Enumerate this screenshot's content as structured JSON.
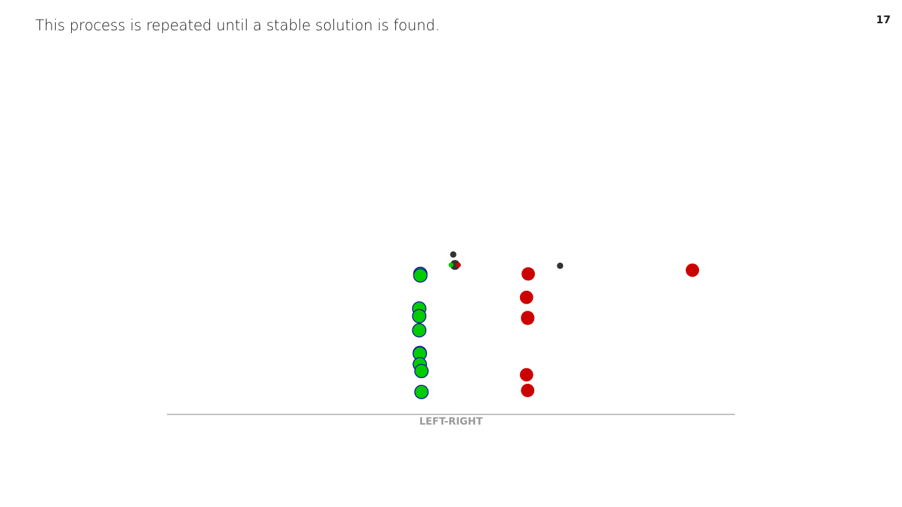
{
  "slide": {
    "title": "This process is repeated until a stable solution is found.",
    "page_number": "17"
  },
  "colors": {
    "cluster_left": "#00cc00",
    "cluster_left_outline": "#1a1aa0",
    "cluster_right": "#cc0000",
    "centroid": "#333333",
    "axis": "#aaaaaa"
  },
  "chart_data": {
    "type": "scatter",
    "title": "",
    "xlabel": "LEFT-RIGHT",
    "ylabel": "",
    "xlim": [
      0,
      100
    ],
    "ylim": [
      0,
      100
    ],
    "grid": false,
    "series": [
      {
        "color": "#00cc00",
        "outline": "#1a1aa0",
        "points": [
          {
            "x": 44.6,
            "y": 85.4
          },
          {
            "x": 44.6,
            "y": 84.4
          },
          {
            "x": 44.4,
            "y": 62.9
          },
          {
            "x": 44.4,
            "y": 58.0
          },
          {
            "x": 44.4,
            "y": 48.8
          },
          {
            "x": 44.5,
            "y": 34.1
          },
          {
            "x": 44.5,
            "y": 33.7
          },
          {
            "x": 44.5,
            "y": 26.8
          },
          {
            "x": 44.8,
            "y": 22.4
          },
          {
            "x": 44.8,
            "y": 8.8
          }
        ]
      },
      {
        "color": "#cc0000",
        "points": [
          {
            "x": 63.6,
            "y": 85.4
          },
          {
            "x": 63.3,
            "y": 70.2
          },
          {
            "x": 63.5,
            "y": 57.1
          },
          {
            "x": 63.5,
            "y": 56.6
          },
          {
            "x": 63.3,
            "y": 20.0
          },
          {
            "x": 63.5,
            "y": 9.8
          },
          {
            "x": 92.5,
            "y": 87.8
          }
        ]
      }
    ],
    "centroids": [
      {
        "x": 50.4,
        "y": 98.0,
        "color": "#333333",
        "size": "small"
      },
      {
        "x": 50.7,
        "y": 91.2,
        "color": "#333333",
        "size": "large"
      },
      {
        "x": 50.0,
        "y": 91.2,
        "color": "#00cc00",
        "size": "tiny"
      },
      {
        "x": 51.3,
        "y": 91.2,
        "color": "#cc0000",
        "size": "tiny"
      },
      {
        "x": 69.2,
        "y": 90.7,
        "color": "#333333",
        "size": "small"
      }
    ]
  }
}
